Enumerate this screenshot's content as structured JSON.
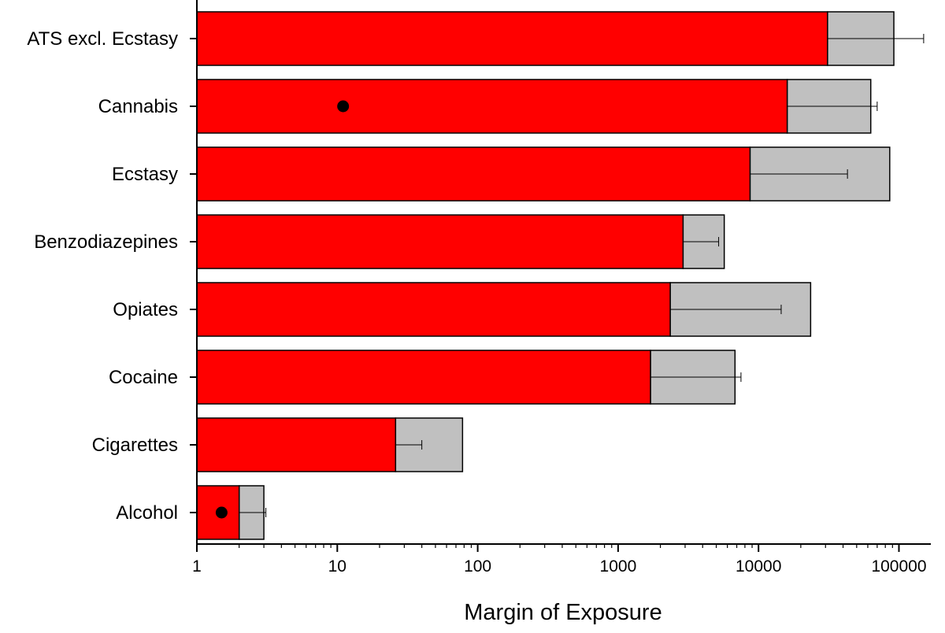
{
  "chart_data": {
    "type": "bar",
    "orientation": "horizontal",
    "xscale": "log",
    "xlim": [
      1,
      150000
    ],
    "xlabel": "Margin of Exposure",
    "ylabel": "",
    "xticks": [
      "1",
      "10",
      "100",
      "1000",
      "10000",
      "100000"
    ],
    "categories": [
      "ATS excl. Ecstasy",
      "Cannabis",
      "Ecstasy",
      "Benzodiazepines",
      "Opiates",
      "Cocaine",
      "Cigarettes",
      "Alcohol"
    ],
    "series": [
      {
        "color": "#ff0000",
        "values": [
          31000,
          16000,
          8700,
          2900,
          2350,
          1700,
          26,
          2
        ]
      },
      {
        "color": "#c0c0c0",
        "values": [
          92000,
          63000,
          86000,
          5700,
          23500,
          6800,
          78,
          3
        ]
      }
    ],
    "error_bars": [
      {
        "from": 31000,
        "to": 150000
      },
      {
        "from": 16000,
        "to": 70000
      },
      {
        "from": 8700,
        "to": 43000
      },
      {
        "from": 2900,
        "to": 5200
      },
      {
        "from": 2350,
        "to": 14500
      },
      {
        "from": 1700,
        "to": 7500
      },
      {
        "from": 26,
        "to": 40
      },
      {
        "from": 2,
        "to": 3.1
      }
    ],
    "markers": [
      {
        "category": "Cannabis",
        "x": 11
      },
      {
        "category": "Alcohol",
        "x": 1.5
      }
    ],
    "grid": false,
    "legend": "none"
  }
}
